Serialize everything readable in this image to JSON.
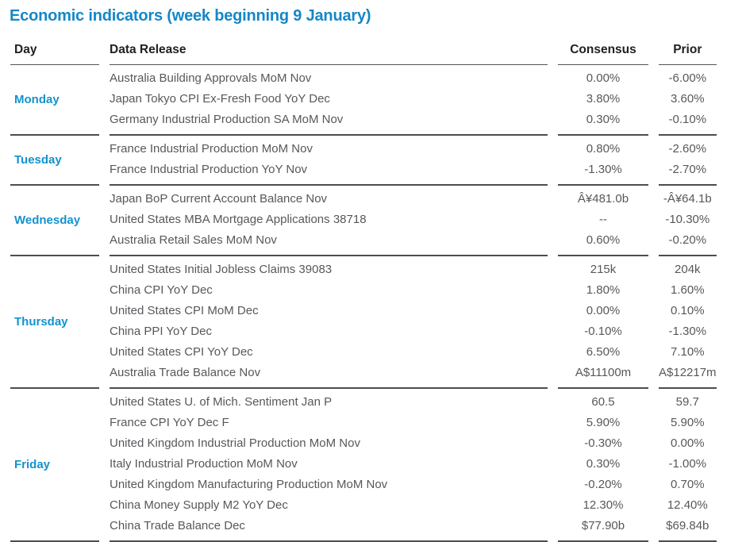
{
  "title": "Economic indicators (week beginning 9 January)",
  "colors": {
    "title_blue": "#1587c7",
    "day_blue": "#1492cf",
    "body_gray": "#57585c",
    "header_black": "#232022",
    "rule_dark": "#4c4d4f"
  },
  "table": {
    "headers": {
      "day": "Day",
      "release": "Data Release",
      "consensus": "Consensus",
      "prior": "Prior"
    },
    "groups": [
      {
        "day": "Monday",
        "rows": [
          {
            "release": "Australia Building Approvals MoM Nov",
            "consensus": "0.00%",
            "prior": "-6.00%"
          },
          {
            "release": "Japan Tokyo CPI Ex-Fresh Food YoY Dec",
            "consensus": "3.80%",
            "prior": "3.60%"
          },
          {
            "release": "Germany Industrial Production SA MoM Nov",
            "consensus": "0.30%",
            "prior": "-0.10%"
          }
        ]
      },
      {
        "day": "Tuesday",
        "rows": [
          {
            "release": "France Industrial Production MoM Nov",
            "consensus": "0.80%",
            "prior": "-2.60%"
          },
          {
            "release": "France Industrial Production YoY Nov",
            "consensus": "-1.30%",
            "prior": "-2.70%"
          }
        ]
      },
      {
        "day": "Wednesday",
        "rows": [
          {
            "release": "Japan BoP Current Account Balance Nov",
            "consensus": "Â¥481.0b",
            "prior": "-Â¥64.1b"
          },
          {
            "release": "United States MBA Mortgage Applications 38718",
            "consensus": "--",
            "prior": "-10.30%"
          },
          {
            "release": "Australia Retail Sales MoM Nov",
            "consensus": "0.60%",
            "prior": "-0.20%"
          }
        ]
      },
      {
        "day": "Thursday",
        "rows": [
          {
            "release": "United States Initial Jobless Claims 39083",
            "consensus": "215k",
            "prior": "204k"
          },
          {
            "release": "China CPI YoY Dec",
            "consensus": "1.80%",
            "prior": "1.60%"
          },
          {
            "release": "United States CPI MoM Dec",
            "consensus": "0.00%",
            "prior": "0.10%"
          },
          {
            "release": "China PPI YoY Dec",
            "consensus": "-0.10%",
            "prior": "-1.30%"
          },
          {
            "release": "United States CPI YoY Dec",
            "consensus": "6.50%",
            "prior": "7.10%"
          },
          {
            "release": "Australia Trade Balance Nov",
            "consensus": "A$11100m",
            "prior": "A$12217m"
          }
        ]
      },
      {
        "day": "Friday",
        "rows": [
          {
            "release": "United States U. of Mich. Sentiment Jan P",
            "consensus": "60.5",
            "prior": "59.7"
          },
          {
            "release": "France CPI YoY Dec F",
            "consensus": "5.90%",
            "prior": "5.90%"
          },
          {
            "release": "United Kingdom Industrial Production MoM Nov",
            "consensus": "-0.30%",
            "prior": "0.00%"
          },
          {
            "release": "Italy Industrial Production MoM Nov",
            "consensus": "0.30%",
            "prior": "-1.00%"
          },
          {
            "release": "United Kingdom Manufacturing Production MoM Nov",
            "consensus": "-0.20%",
            "prior": "0.70%"
          },
          {
            "release": "China Money Supply M2 YoY Dec",
            "consensus": "12.30%",
            "prior": "12.40%"
          },
          {
            "release": "China Trade Balance Dec",
            "consensus": "$77.90b",
            "prior": "$69.84b"
          }
        ]
      }
    ]
  }
}
